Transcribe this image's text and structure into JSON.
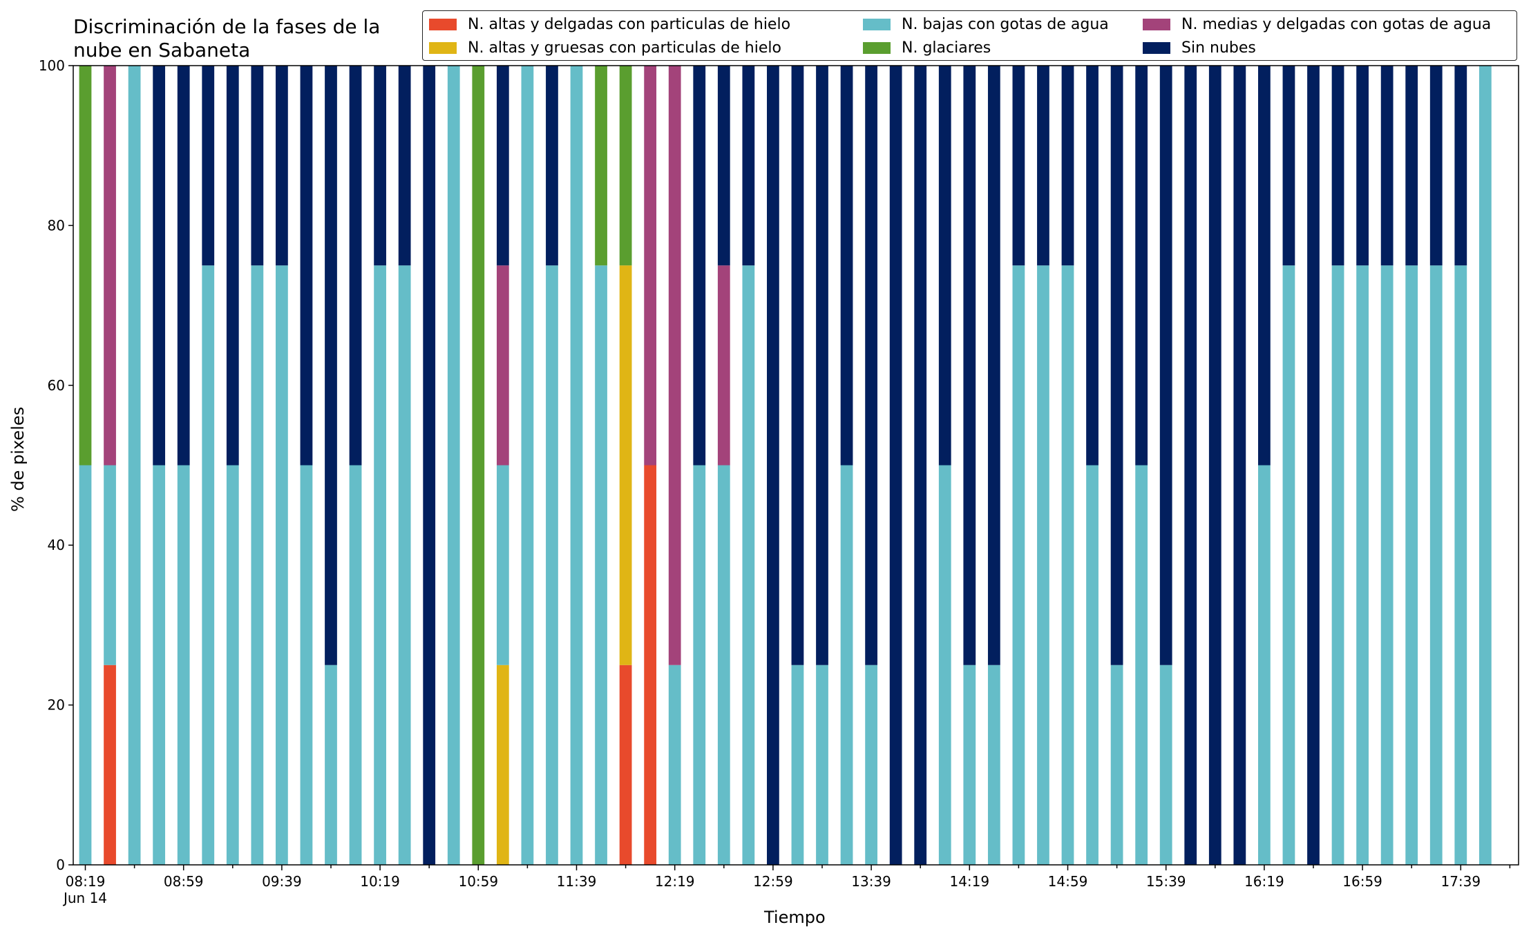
{
  "chart_data": {
    "type": "bar",
    "stacked": true,
    "title_lines": [
      "Discriminación de la fases de la",
      "nube en Sabaneta"
    ],
    "xlabel": "Tiempo",
    "ylabel": "% de pixeles",
    "ylim": [
      0,
      100
    ],
    "yticks": [
      0,
      20,
      40,
      60,
      80,
      100
    ],
    "xtick_labels": [
      "08:19",
      "08:59",
      "09:39",
      "10:19",
      "10:59",
      "11:39",
      "12:19",
      "12:59",
      "13:39",
      "14:19",
      "14:59",
      "15:39",
      "16:19",
      "16:59",
      "17:39"
    ],
    "xtick_sublabel": "Jun 14",
    "legend_placement": "top-right",
    "legend_columns": 3,
    "series": [
      {
        "key": "agh",
        "name": "N. altas y delgadas con particulas de hielo",
        "color": "#e84a2c"
      },
      {
        "key": "agr",
        "name": "N. altas y gruesas con particulas de hielo",
        "color": "#e0b515"
      },
      {
        "key": "baj",
        "name": "N. bajas con gotas de agua",
        "color": "#65bdc8"
      },
      {
        "key": "gla",
        "name": "N. glaciares",
        "color": "#5a9e2f"
      },
      {
        "key": "med",
        "name": "N. medias y delgadas con gotas de agua",
        "color": "#a3437a"
      },
      {
        "key": "sin",
        "name": "Sin nubes",
        "color": "#021f5e"
      }
    ],
    "stack_order": [
      "agh",
      "agr",
      "baj",
      "gla",
      "med",
      "sin"
    ],
    "categories": [
      "08:19",
      "08:29",
      "08:39",
      "08:49",
      "08:59",
      "09:09",
      "09:19",
      "09:29",
      "09:39",
      "09:49",
      "09:59",
      "10:09",
      "10:19",
      "10:29",
      "10:39",
      "10:49",
      "10:59",
      "11:09",
      "11:19",
      "11:29",
      "11:39",
      "11:49",
      "11:59",
      "12:09",
      "12:19",
      "12:29",
      "12:39",
      "12:49",
      "12:59",
      "13:09",
      "13:19",
      "13:29",
      "13:39",
      "13:49",
      "13:59",
      "14:09",
      "14:19",
      "14:29",
      "14:39",
      "14:49",
      "14:59",
      "15:09",
      "15:19",
      "15:29",
      "15:39",
      "15:49",
      "15:59",
      "16:09",
      "16:19",
      "16:29",
      "16:39",
      "16:49",
      "16:59",
      "17:09",
      "17:19",
      "17:29",
      "17:39",
      "17:49"
    ],
    "bars": [
      {
        "baj": 50,
        "gla": 50
      },
      {
        "agh": 25,
        "baj": 25,
        "med": 50
      },
      {
        "baj": 100
      },
      {
        "baj": 50,
        "sin": 50
      },
      {
        "baj": 50,
        "sin": 50
      },
      {
        "baj": 75,
        "sin": 25
      },
      {
        "baj": 50,
        "sin": 50
      },
      {
        "baj": 75,
        "sin": 25
      },
      {
        "baj": 75,
        "sin": 25
      },
      {
        "baj": 50,
        "sin": 50
      },
      {
        "baj": 25,
        "sin": 75
      },
      {
        "baj": 50,
        "sin": 50
      },
      {
        "baj": 75,
        "sin": 25
      },
      {
        "baj": 75,
        "sin": 25
      },
      {
        "sin": 100
      },
      {
        "baj": 100
      },
      {
        "gla": 100
      },
      {
        "agr": 25,
        "baj": 25,
        "med": 25,
        "sin": 25
      },
      {
        "baj": 100
      },
      {
        "baj": 75,
        "sin": 25
      },
      {
        "baj": 100
      },
      {
        "baj": 75,
        "gla": 25
      },
      {
        "agh": 25,
        "agr": 50,
        "gla": 25
      },
      {
        "agh": 50,
        "med": 50
      },
      {
        "baj": 25,
        "med": 75
      },
      {
        "baj": 50,
        "sin": 50
      },
      {
        "baj": 50,
        "med": 25,
        "sin": 25
      },
      {
        "baj": 75,
        "sin": 25
      },
      {
        "sin": 100
      },
      {
        "baj": 25,
        "sin": 75
      },
      {
        "baj": 25,
        "sin": 75
      },
      {
        "baj": 50,
        "sin": 50
      },
      {
        "baj": 25,
        "sin": 75
      },
      {
        "sin": 100
      },
      {
        "sin": 100
      },
      {
        "baj": 50,
        "sin": 50
      },
      {
        "baj": 25,
        "sin": 75
      },
      {
        "baj": 25,
        "sin": 75
      },
      {
        "baj": 75,
        "sin": 25
      },
      {
        "baj": 75,
        "sin": 25
      },
      {
        "baj": 75,
        "sin": 25
      },
      {
        "baj": 50,
        "sin": 50
      },
      {
        "baj": 25,
        "sin": 75
      },
      {
        "baj": 50,
        "sin": 50
      },
      {
        "baj": 25,
        "sin": 75
      },
      {
        "sin": 100
      },
      {
        "sin": 100
      },
      {
        "sin": 100
      },
      {
        "baj": 50,
        "sin": 50
      },
      {
        "baj": 75,
        "sin": 25
      },
      {
        "sin": 100
      },
      {
        "baj": 75,
        "sin": 25
      },
      {
        "baj": 75,
        "sin": 25
      },
      {
        "baj": 75,
        "sin": 25
      },
      {
        "baj": 75,
        "sin": 25
      },
      {
        "baj": 75,
        "sin": 25
      },
      {
        "baj": 75,
        "sin": 25
      },
      {
        "baj": 100
      }
    ]
  }
}
